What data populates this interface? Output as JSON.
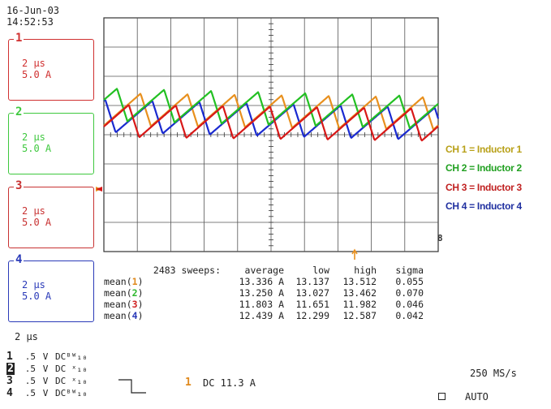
{
  "header": {
    "date": "16-Jun-03",
    "time": "14:52:53"
  },
  "channels": [
    {
      "id": "1",
      "timediv": "2 µs",
      "ampdiv": "5.0 A",
      "color": "#d03030"
    },
    {
      "id": "2",
      "timediv": "2 µs",
      "ampdiv": "5.0 A",
      "color": "#3ec83e"
    },
    {
      "id": "3",
      "timediv": "2 µs",
      "ampdiv": "5.0 A",
      "color": "#c83232"
    },
    {
      "id": "4",
      "timediv": "2 µs",
      "ampdiv": "5.0 A",
      "color": "#2a3ab8"
    }
  ],
  "legend": [
    {
      "text": "CH 1 = Inductor 1",
      "color": "#b8a018"
    },
    {
      "text": "CH 2 = Inductor 2",
      "color": "#20a020"
    },
    {
      "text": "CH 3 = Inductor 3",
      "color": "#c02020"
    },
    {
      "text": "CH 4 = Inductor 4",
      "color": "#2030a0"
    }
  ],
  "stats": {
    "sweeps": "2483 sweeps:",
    "headers": [
      "average",
      "low",
      "high",
      "sigma"
    ],
    "rows": [
      {
        "label_pre": "mean(",
        "num": "1",
        "label_post": ")",
        "average": "13.336 A",
        "low": "13.137",
        "high": "13.512",
        "sigma": "0.055"
      },
      {
        "label_pre": "mean(",
        "num": "2",
        "label_post": ")",
        "average": "13.250 A",
        "low": "13.027",
        "high": "13.462",
        "sigma": "0.070"
      },
      {
        "label_pre": "mean(",
        "num": "3",
        "label_post": ")",
        "average": "11.803 A",
        "low": "11.651",
        "high": "11.982",
        "sigma": "0.046"
      },
      {
        "label_pre": "mean(",
        "num": "4",
        "label_post": ")",
        "average": "12.439 A",
        "low": "12.299",
        "high": "12.587",
        "sigma": "0.042"
      }
    ]
  },
  "timebase": "2 µs",
  "channel_settings": [
    {
      "n": "1",
      "volts": ".5",
      "unit": "V",
      "coupling": "DCᴮᵂ₁₀"
    },
    {
      "n": "2",
      "volts": ".5",
      "unit": "V",
      "coupling": "DC ˣ₁₀"
    },
    {
      "n": "3",
      "volts": ".5",
      "unit": "V",
      "coupling": "DC ˣ₁₀"
    },
    {
      "n": "4",
      "volts": ".5",
      "unit": "V",
      "coupling": "DCᴮᵂ₁₀"
    }
  ],
  "trigger": {
    "channel": "1",
    "text": "DC 11.3 A"
  },
  "sample_rate": "250 MS/s",
  "mode": "AUTO",
  "chart_data": {
    "type": "line",
    "series": [
      {
        "name": "CH 1 = Inductor 1",
        "color": "#e8901e",
        "mean": 13.336
      },
      {
        "name": "CH 2 = Inductor 2",
        "color": "#22c022",
        "mean": 13.25
      },
      {
        "name": "CH 3 = Inductor 3",
        "color": "#d81818",
        "mean": 11.803
      },
      {
        "name": "CH 4 = Inductor 4",
        "color": "#1a2ad0",
        "mean": 12.439
      }
    ],
    "xdivs": 10,
    "ydivs": 8,
    "grid": true
  }
}
